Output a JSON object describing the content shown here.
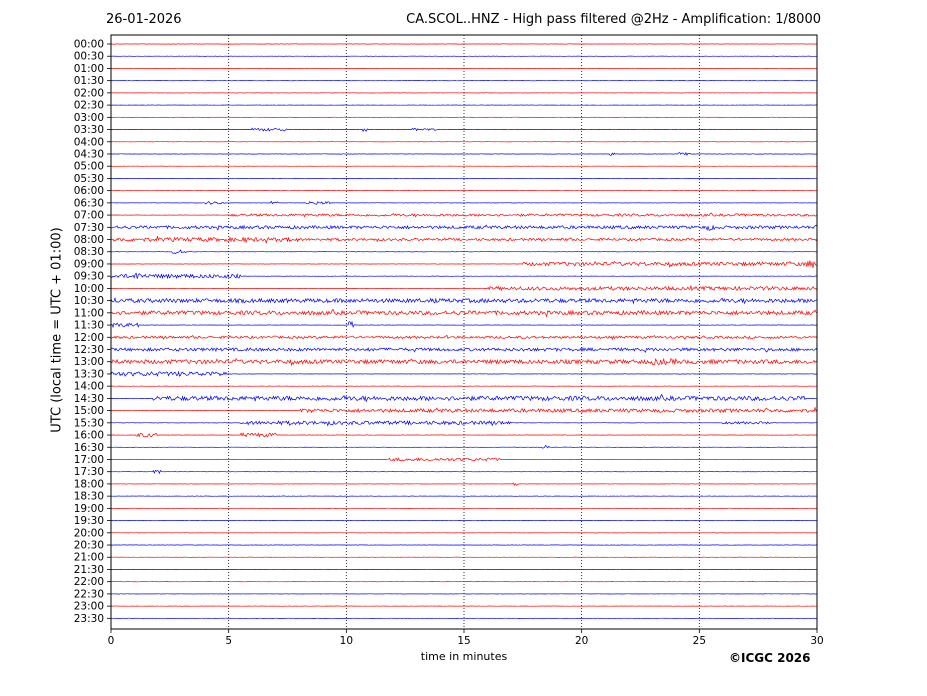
{
  "header": {
    "date": "26-01-2026",
    "title": "CA.SCOL..HNZ - High pass filtered @2Hz - Amplification: 1/8000"
  },
  "footer": {
    "copyright": "©ICGC 2026"
  },
  "chart_data": {
    "type": "line",
    "title": "CA.SCOL..HNZ - High pass filtered @2Hz - Amplification: 1/8000",
    "xlabel": "time in minutes",
    "ylabel": "UTC (local time = UTC + 01:00)",
    "xlim": [
      0,
      30
    ],
    "x_ticks": [
      0,
      5,
      10,
      15,
      20,
      25,
      30
    ],
    "vertical_grid_minutes": [
      5,
      10,
      15,
      20,
      25
    ],
    "grid_style": "dotted vertical",
    "row_colors": [
      "#ff0000",
      "#0000ff"
    ],
    "rows": [
      "00:00",
      "00:30",
      "01:00",
      "01:30",
      "02:00",
      "02:30",
      "03:00",
      "03:30",
      "04:00",
      "04:30",
      "05:00",
      "05:30",
      "06:00",
      "06:30",
      "07:00",
      "07:30",
      "08:00",
      "08:30",
      "09:00",
      "09:30",
      "10:00",
      "10:30",
      "11:00",
      "11:30",
      "12:00",
      "12:30",
      "13:00",
      "13:30",
      "14:00",
      "14:30",
      "15:00",
      "15:30",
      "16:00",
      "16:30",
      "17:00",
      "17:30",
      "18:00",
      "18:30",
      "19:00",
      "19:30",
      "20:00",
      "20:30",
      "21:00",
      "21:30",
      "22:00",
      "22:30",
      "23:00",
      "23:30"
    ],
    "activity_segments": [
      {
        "row": "03:30",
        "from": 6.0,
        "to": 7.5,
        "level": 1.5
      },
      {
        "row": "03:30",
        "from": 10.7,
        "to": 10.9,
        "level": 2
      },
      {
        "row": "03:30",
        "from": 12.8,
        "to": 13.8,
        "level": 1.2
      },
      {
        "row": "04:30",
        "from": 21.2,
        "to": 21.4,
        "level": 1.5
      },
      {
        "row": "04:30",
        "from": 24.1,
        "to": 24.6,
        "level": 1.5
      },
      {
        "row": "06:30",
        "from": 4.0,
        "to": 4.8,
        "level": 1.5
      },
      {
        "row": "06:30",
        "from": 6.8,
        "to": 7.1,
        "level": 1.5
      },
      {
        "row": "06:30",
        "from": 8.3,
        "to": 9.3,
        "level": 1.5
      },
      {
        "row": "07:00",
        "from": 5.0,
        "to": 30.0,
        "level": 1.2
      },
      {
        "row": "07:30",
        "from": 0.0,
        "to": 30.0,
        "level": 1.5
      },
      {
        "row": "07:30",
        "from": 25.3,
        "to": 25.8,
        "level": 3
      },
      {
        "row": "08:00",
        "from": 0.0,
        "to": 8.0,
        "level": 2
      },
      {
        "row": "08:00",
        "from": 8.0,
        "to": 30.0,
        "level": 1.2
      },
      {
        "row": "08:30",
        "from": 2.6,
        "to": 3.2,
        "level": 2
      },
      {
        "row": "09:00",
        "from": 17.5,
        "to": 30.0,
        "level": 1.8
      },
      {
        "row": "09:00",
        "from": 29.5,
        "to": 29.9,
        "level": 4
      },
      {
        "row": "09:30",
        "from": 0.0,
        "to": 5.5,
        "level": 2
      },
      {
        "row": "09:30",
        "from": 1.0,
        "to": 1.3,
        "level": 4
      },
      {
        "row": "10:00",
        "from": 16.0,
        "to": 30.0,
        "level": 1.8
      },
      {
        "row": "10:30",
        "from": 0.0,
        "to": 30.0,
        "level": 2
      },
      {
        "row": "11:00",
        "from": 0.0,
        "to": 30.0,
        "level": 2
      },
      {
        "row": "11:30",
        "from": 0.0,
        "to": 1.2,
        "level": 2
      },
      {
        "row": "11:30",
        "from": 10.1,
        "to": 10.4,
        "level": 5
      },
      {
        "row": "12:00",
        "from": 0.0,
        "to": 30.0,
        "level": 1.2
      },
      {
        "row": "12:30",
        "from": 0.0,
        "to": 30.0,
        "level": 1.5
      },
      {
        "row": "13:00",
        "from": 0.0,
        "to": 30.0,
        "level": 2
      },
      {
        "row": "13:00",
        "from": 23.0,
        "to": 24.0,
        "level": 3
      },
      {
        "row": "13:30",
        "from": 0.0,
        "to": 5.0,
        "level": 2.2
      },
      {
        "row": "14:30",
        "from": 1.8,
        "to": 29.5,
        "level": 2.2
      },
      {
        "row": "15:00",
        "from": 8.0,
        "to": 30.0,
        "level": 1.8
      },
      {
        "row": "15:30",
        "from": 5.5,
        "to": 17.0,
        "level": 1.8
      },
      {
        "row": "15:30",
        "from": 26.0,
        "to": 28.0,
        "level": 1.2
      },
      {
        "row": "16:00",
        "from": 1.0,
        "to": 2.0,
        "level": 2
      },
      {
        "row": "16:00",
        "from": 5.5,
        "to": 7.0,
        "level": 2
      },
      {
        "row": "16:30",
        "from": 18.3,
        "to": 18.6,
        "level": 1.5
      },
      {
        "row": "17:00",
        "from": 11.8,
        "to": 16.5,
        "level": 1.5
      },
      {
        "row": "17:30",
        "from": 1.8,
        "to": 2.1,
        "level": 2
      },
      {
        "row": "18:00",
        "from": 17.1,
        "to": 17.3,
        "level": 1.5
      }
    ]
  }
}
